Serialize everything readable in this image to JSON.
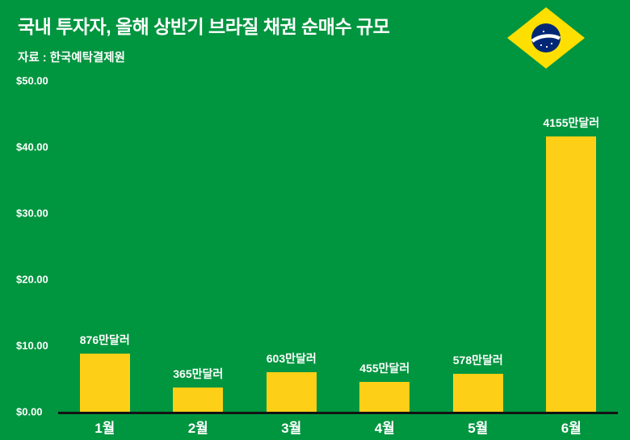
{
  "header": {
    "title": "국내 투자자, 올해 상반기 브라질 채권 순매수 규모",
    "source": "자료 : 한국예탁결제원"
  },
  "icons": {
    "flag": "brazil-flag-icon"
  },
  "chart_data": {
    "type": "bar",
    "title": "국내 투자자, 올해 상반기 브라질 채권 순매수 규모",
    "source": "자료 : 한국예탁결제원",
    "categories": [
      "1월",
      "2월",
      "3월",
      "4월",
      "5월",
      "6월"
    ],
    "values": [
      8.76,
      3.65,
      6.03,
      4.55,
      5.78,
      41.55
    ],
    "bar_labels": [
      "876만달러",
      "365만달러",
      "603만달러",
      "455만달러",
      "578만달러",
      "4155만달러"
    ],
    "y_ticks": [
      "$50.00",
      "$40.00",
      "$30.00",
      "$20.00",
      "$10.00",
      "$0.00"
    ],
    "ylim": [
      0,
      50
    ],
    "xlabel": "",
    "ylabel": "",
    "grid": false,
    "legend": false,
    "bar_color": "#FDD017",
    "background_color": "#00953F",
    "axis_color": "#121212",
    "text_color": "#ffffff"
  }
}
